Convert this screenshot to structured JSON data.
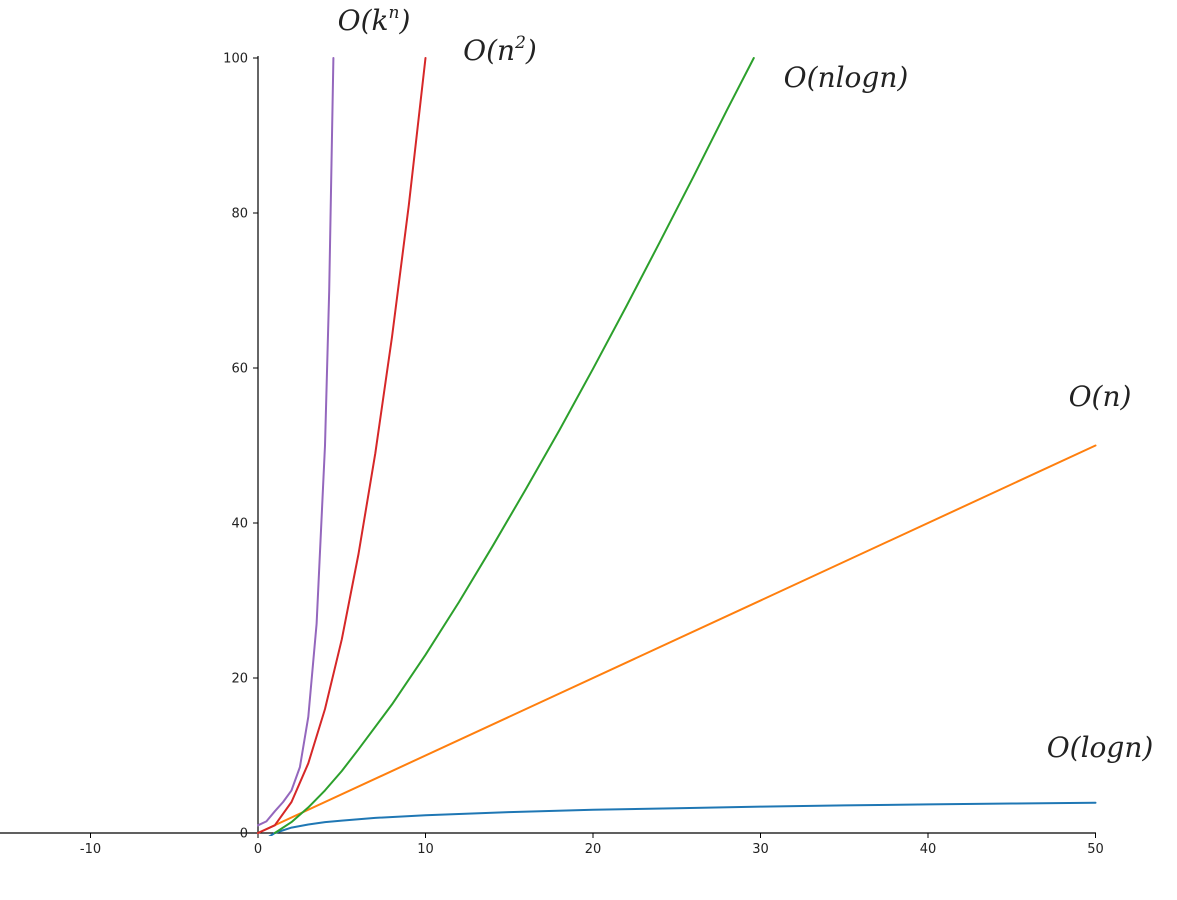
{
  "chart_data": {
    "type": "line",
    "title": "",
    "xlabel": "",
    "ylabel": "",
    "xlim": [
      -15.5,
      50
    ],
    "ylim": [
      0,
      100
    ],
    "x_ticks": [
      -10,
      0,
      10,
      20,
      30,
      40,
      50
    ],
    "y_ticks": [
      0,
      20,
      40,
      60,
      80,
      100
    ],
    "grid": false,
    "legend": "none",
    "series": [
      {
        "color": "#1f77b4",
        "label_parts": [
          "O(",
          "logn",
          ")",
          ""
        ],
        "points": [
          [
            0.1,
            -2.3
          ],
          [
            0.5,
            -0.7
          ],
          [
            1,
            0
          ],
          [
            2,
            0.7
          ],
          [
            3,
            1.1
          ],
          [
            4,
            1.4
          ],
          [
            5,
            1.6
          ],
          [
            7,
            1.95
          ],
          [
            10,
            2.3
          ],
          [
            15,
            2.7
          ],
          [
            20,
            3.0
          ],
          [
            25,
            3.2
          ],
          [
            30,
            3.4
          ],
          [
            35,
            3.56
          ],
          [
            40,
            3.69
          ],
          [
            45,
            3.81
          ],
          [
            50,
            3.91
          ]
        ]
      },
      {
        "color": "#ff7f0e",
        "label_parts": [
          "O(",
          "n",
          ")",
          ""
        ],
        "points": [
          [
            0,
            0
          ],
          [
            50,
            50
          ]
        ]
      },
      {
        "color": "#2ca02c",
        "label_parts": [
          "O(",
          "nlogn",
          ")",
          ""
        ],
        "points": [
          [
            1,
            0
          ],
          [
            2,
            1.4
          ],
          [
            3,
            3.3
          ],
          [
            4,
            5.5
          ],
          [
            5,
            8.0
          ],
          [
            6,
            10.8
          ],
          [
            8,
            16.6
          ],
          [
            10,
            23.0
          ],
          [
            12,
            29.8
          ],
          [
            14,
            37.0
          ],
          [
            16,
            44.4
          ],
          [
            18,
            52.0
          ],
          [
            20,
            59.9
          ],
          [
            22,
            68.0
          ],
          [
            24,
            76.3
          ],
          [
            26,
            84.7
          ],
          [
            28,
            93.3
          ],
          [
            29.6,
            100
          ]
        ]
      },
      {
        "color": "#d62728",
        "label_parts": [
          "O(",
          "n",
          ")",
          "2"
        ],
        "points": [
          [
            0,
            0
          ],
          [
            1,
            1
          ],
          [
            2,
            4
          ],
          [
            3,
            9
          ],
          [
            4,
            16
          ],
          [
            5,
            25
          ],
          [
            6,
            36
          ],
          [
            7,
            49
          ],
          [
            8,
            64
          ],
          [
            9,
            81
          ],
          [
            10,
            100
          ]
        ]
      },
      {
        "color": "#9467bd",
        "label_parts": [
          "O(",
          "k",
          ")",
          "n"
        ],
        "points": [
          [
            0,
            1
          ],
          [
            0.5,
            1.5
          ],
          [
            1,
            2.8
          ],
          [
            1.5,
            4.0
          ],
          [
            2,
            5.5
          ],
          [
            2.5,
            8.5
          ],
          [
            3,
            15
          ],
          [
            3.5,
            27
          ],
          [
            4,
            50
          ],
          [
            4.25,
            70
          ],
          [
            4.5,
            100
          ]
        ]
      }
    ]
  }
}
